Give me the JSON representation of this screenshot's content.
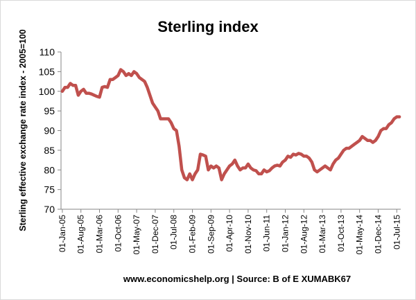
{
  "chart_data": {
    "type": "line",
    "title": "Sterling index",
    "y_label": "Sterling effective exchange rate index - 2005=100",
    "footer": "www.economicshelp.org | Source: B of E XUMABK67",
    "categories": [
      "01-Jan-05",
      null,
      null,
      null,
      null,
      null,
      null,
      "01-Aug-05",
      null,
      null,
      null,
      null,
      null,
      null,
      "01-Mar-06",
      null,
      null,
      null,
      null,
      null,
      null,
      "01-Oct-06",
      null,
      null,
      null,
      null,
      null,
      null,
      "01-May-07",
      null,
      null,
      null,
      null,
      null,
      null,
      "01-Dec-07",
      null,
      null,
      null,
      null,
      null,
      null,
      "01-Jul-08",
      null,
      null,
      null,
      null,
      null,
      null,
      "01-Feb-09",
      null,
      null,
      null,
      null,
      null,
      null,
      "01-Sep-09",
      null,
      null,
      null,
      null,
      null,
      null,
      "01-Apr-10",
      null,
      null,
      null,
      null,
      null,
      null,
      "01-Nov-10",
      null,
      null,
      null,
      null,
      null,
      null,
      "01-Jun-11",
      null,
      null,
      null,
      null,
      null,
      null,
      "01-Jan-12",
      null,
      null,
      null,
      null,
      null,
      null,
      "01-Aug-12",
      null,
      null,
      null,
      null,
      null,
      null,
      "01-Mar-13",
      null,
      null,
      null,
      null,
      null,
      null,
      "01-Oct-13",
      null,
      null,
      null,
      null,
      null,
      null,
      "01-May-14",
      null,
      null,
      null,
      null,
      null,
      null,
      "01-Dec-14",
      null,
      null,
      null,
      null,
      null,
      null,
      "01-Jul-15",
      null
    ],
    "values": [
      100,
      101,
      101,
      102,
      101.5,
      101.5,
      99,
      100,
      100.5,
      99.5,
      99.5,
      99.3,
      99,
      98.7,
      98.5,
      101,
      101.2,
      101,
      103,
      103,
      103.5,
      104,
      105.5,
      105,
      104,
      104.5,
      104,
      105,
      104.5,
      103.5,
      103,
      102.5,
      101,
      99,
      97,
      96,
      95,
      93,
      93,
      93,
      93,
      92,
      90.5,
      90,
      86,
      80,
      78,
      77.5,
      79,
      77.5,
      79,
      80,
      84,
      83.8,
      83.5,
      80,
      81,
      80.5,
      81,
      80.5,
      77.5,
      79,
      80,
      81,
      81.5,
      82.5,
      81,
      80,
      80.5,
      80.5,
      81.5,
      80.5,
      80,
      79.8,
      79,
      79,
      80,
      79.5,
      79.8,
      80.5,
      81,
      81.2,
      81,
      82,
      82.5,
      83.5,
      83.2,
      84,
      83.8,
      84.2,
      84,
      83.5,
      83.5,
      83,
      82,
      80,
      79.5,
      80,
      80.5,
      81,
      80.5,
      80,
      81.5,
      82.5,
      83,
      84,
      85,
      85.5,
      85.5,
      86,
      86.5,
      87,
      87.5,
      88.5,
      88,
      87.5,
      87.5,
      87,
      87.5,
      88.5,
      90,
      90.5,
      90.5,
      91.5,
      92,
      93,
      93.5,
      93.5
    ],
    "color": "#c0504d",
    "ylim": [
      70,
      110
    ],
    "yticks": [
      70,
      75,
      80,
      85,
      90,
      95,
      100,
      105,
      110
    ],
    "grid": false
  }
}
